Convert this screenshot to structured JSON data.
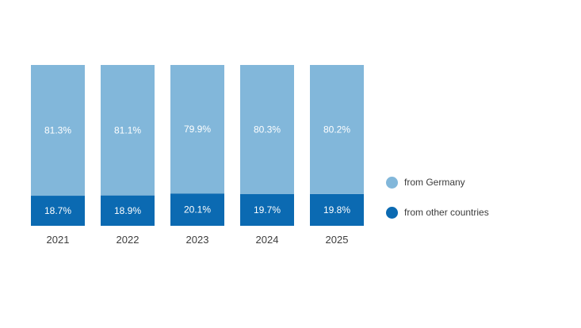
{
  "chart_data": {
    "type": "bar",
    "stacked": true,
    "percent": true,
    "categories": [
      "2021",
      "2022",
      "2023",
      "2024",
      "2025"
    ],
    "series": [
      {
        "name": "from other countries",
        "values": [
          18.7,
          18.9,
          20.1,
          19.7,
          19.8
        ],
        "color": "#0b6ab2",
        "labels": [
          "18.7%",
          "18.9%",
          "20.1%",
          "19.7%",
          "19.8%"
        ]
      },
      {
        "name": "from Germany",
        "values": [
          81.3,
          81.1,
          79.9,
          80.3,
          80.2
        ],
        "color": "#82b7da",
        "labels": [
          "81.3%",
          "81.1%",
          "79.9%",
          "80.3%",
          "80.2%"
        ]
      }
    ],
    "ylim": [
      0,
      100
    ],
    "grid": false,
    "legend_position": "right"
  },
  "legend": {
    "items": [
      {
        "label": "from Germany",
        "color": "#82b7da"
      },
      {
        "label": "from other countries",
        "color": "#0b6ab2"
      }
    ]
  }
}
